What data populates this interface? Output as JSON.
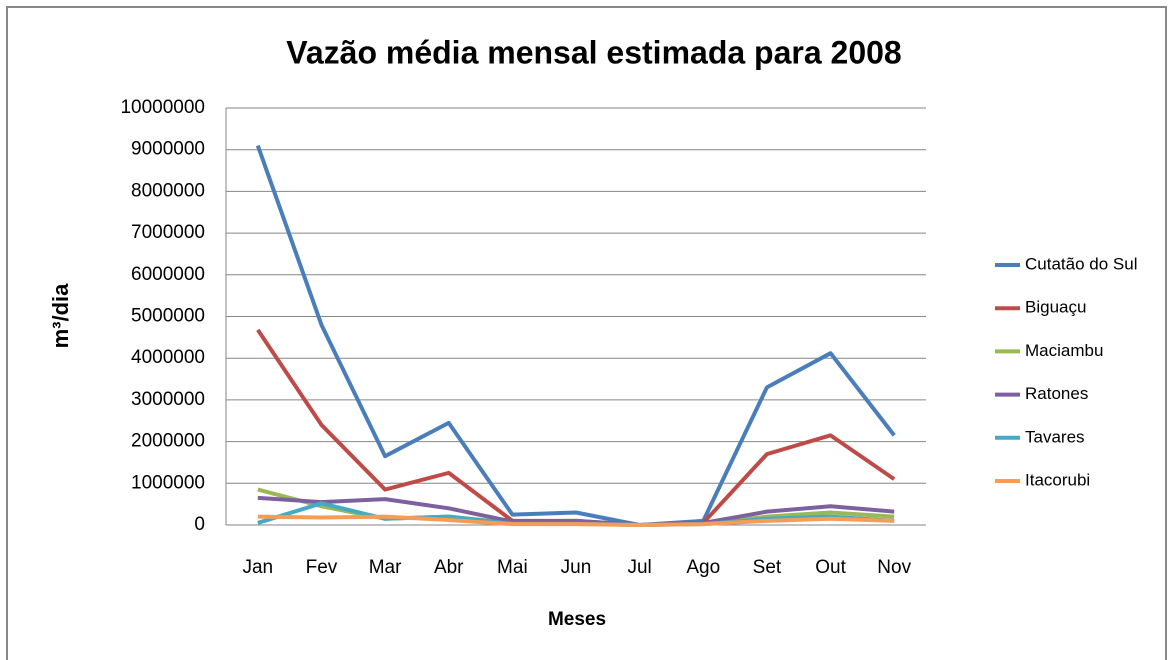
{
  "chart_data": {
    "type": "line",
    "title": "Vazão média mensal estimada para 2008",
    "xlabel": "Meses",
    "ylabel": "m³/dia",
    "categories": [
      "Jan",
      "Fev",
      "Mar",
      "Abr",
      "Mai",
      "Jun",
      "Jul",
      "Ago",
      "Set",
      "Out",
      "Nov"
    ],
    "ylim": [
      0,
      10000000
    ],
    "yticks": [
      0,
      1000000,
      2000000,
      3000000,
      4000000,
      5000000,
      6000000,
      7000000,
      8000000,
      9000000,
      10000000
    ],
    "grid": true,
    "legend": "right",
    "series": [
      {
        "name": "Cutatão do Sul",
        "color": "#4a7ebb",
        "values": [
          9100000,
          4800000,
          1650000,
          2450000,
          250000,
          300000,
          0,
          100000,
          3300000,
          4120000,
          2150000
        ]
      },
      {
        "name": "Biguaçu",
        "color": "#be4b48",
        "values": [
          4680000,
          2400000,
          850000,
          1250000,
          100000,
          100000,
          0,
          50000,
          1700000,
          2150000,
          1100000
        ]
      },
      {
        "name": "Maciambu",
        "color": "#98b954",
        "values": [
          850000,
          450000,
          150000,
          200000,
          50000,
          50000,
          0,
          30000,
          200000,
          300000,
          200000
        ]
      },
      {
        "name": "Ratones",
        "color": "#7d60a0",
        "values": [
          650000,
          550000,
          620000,
          400000,
          80000,
          100000,
          0,
          50000,
          320000,
          450000,
          320000
        ]
      },
      {
        "name": "Tavares",
        "color": "#46aac5",
        "values": [
          50000,
          520000,
          150000,
          200000,
          30000,
          30000,
          0,
          20000,
          150000,
          200000,
          100000
        ]
      },
      {
        "name": "Itacorubi",
        "color": "#f59d56",
        "values": [
          200000,
          180000,
          200000,
          120000,
          20000,
          20000,
          0,
          20000,
          100000,
          150000,
          100000
        ]
      }
    ]
  }
}
